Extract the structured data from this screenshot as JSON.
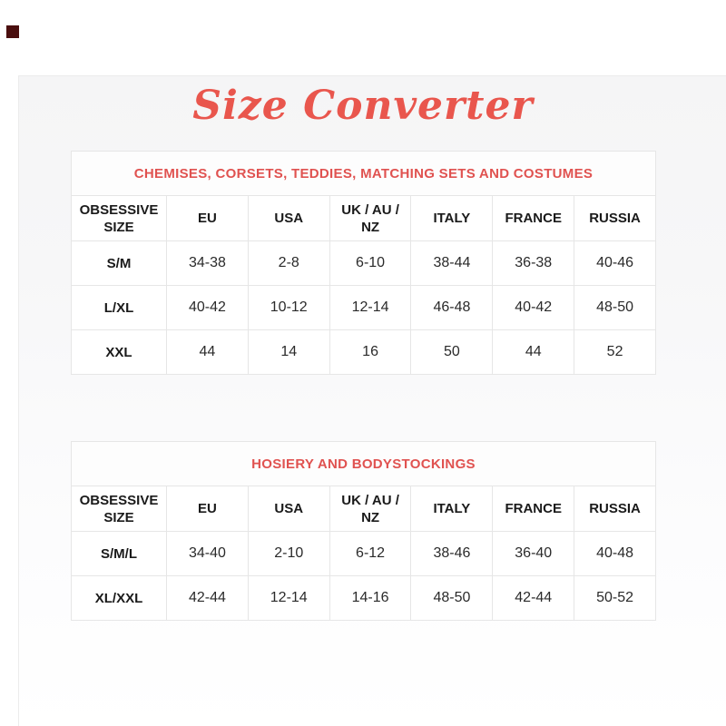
{
  "page": {
    "title": "Size Converter",
    "accent_color": "#e9564d",
    "caption_color": "#e05250",
    "brand_square_color": "#4a0e0e",
    "border_color": "#e6e6e6"
  },
  "tables": [
    {
      "caption": "CHEMISES, CORSETS, TEDDIES, MATCHING SETS AND COSTUMES",
      "headers": [
        "OBSESSIVE SIZE",
        "EU",
        "USA",
        "UK / AU / NZ",
        "ITALY",
        "FRANCE",
        "RUSSIA"
      ],
      "rows": [
        [
          "S/M",
          "34-38",
          "2-8",
          "6-10",
          "38-44",
          "36-38",
          "40-46"
        ],
        [
          "L/XL",
          "40-42",
          "10-12",
          "12-14",
          "46-48",
          "40-42",
          "48-50"
        ],
        [
          "XXL",
          "44",
          "14",
          "16",
          "50",
          "44",
          "52"
        ]
      ]
    },
    {
      "caption": "HOSIERY AND BODYSTOCKINGS",
      "headers": [
        "OBSESSIVE SIZE",
        "EU",
        "USA",
        "UK / AU / NZ",
        "ITALY",
        "FRANCE",
        "RUSSIA"
      ],
      "rows": [
        [
          "S/M/L",
          "34-40",
          "2-10",
          "6-12",
          "38-46",
          "36-40",
          "40-48"
        ],
        [
          "XL/XXL",
          "42-44",
          "12-14",
          "14-16",
          "48-50",
          "42-44",
          "50-52"
        ]
      ]
    }
  ]
}
